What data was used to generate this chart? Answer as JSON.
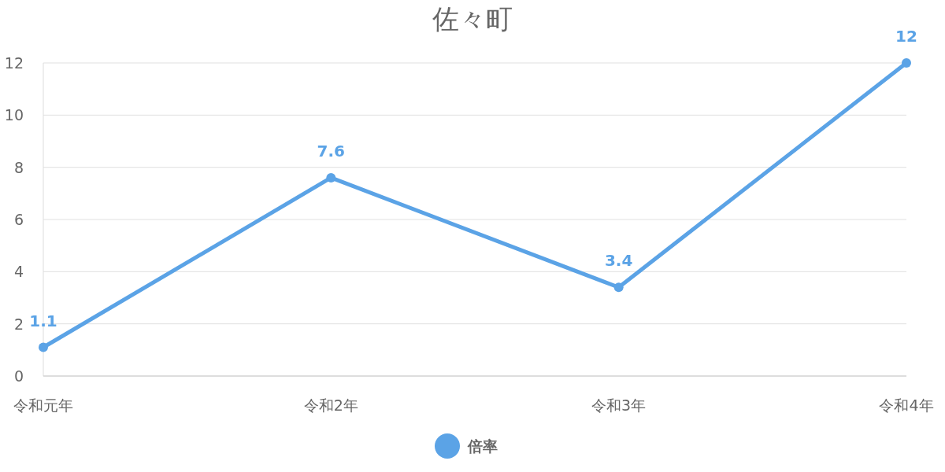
{
  "chart_data": {
    "type": "line",
    "title": "佐々町",
    "categories": [
      "令和元年",
      "令和2年",
      "令和3年",
      "令和4年"
    ],
    "series": [
      {
        "name": "倍率",
        "color": "#5ba3e6",
        "values": [
          1.1,
          7.6,
          3.4,
          12
        ]
      }
    ],
    "ylim": [
      0,
      12
    ],
    "yticks": [
      0,
      2,
      4,
      6,
      8,
      10,
      12
    ],
    "grid": "y",
    "legend": "bottom",
    "marker": "circle",
    "data_labels": true
  }
}
